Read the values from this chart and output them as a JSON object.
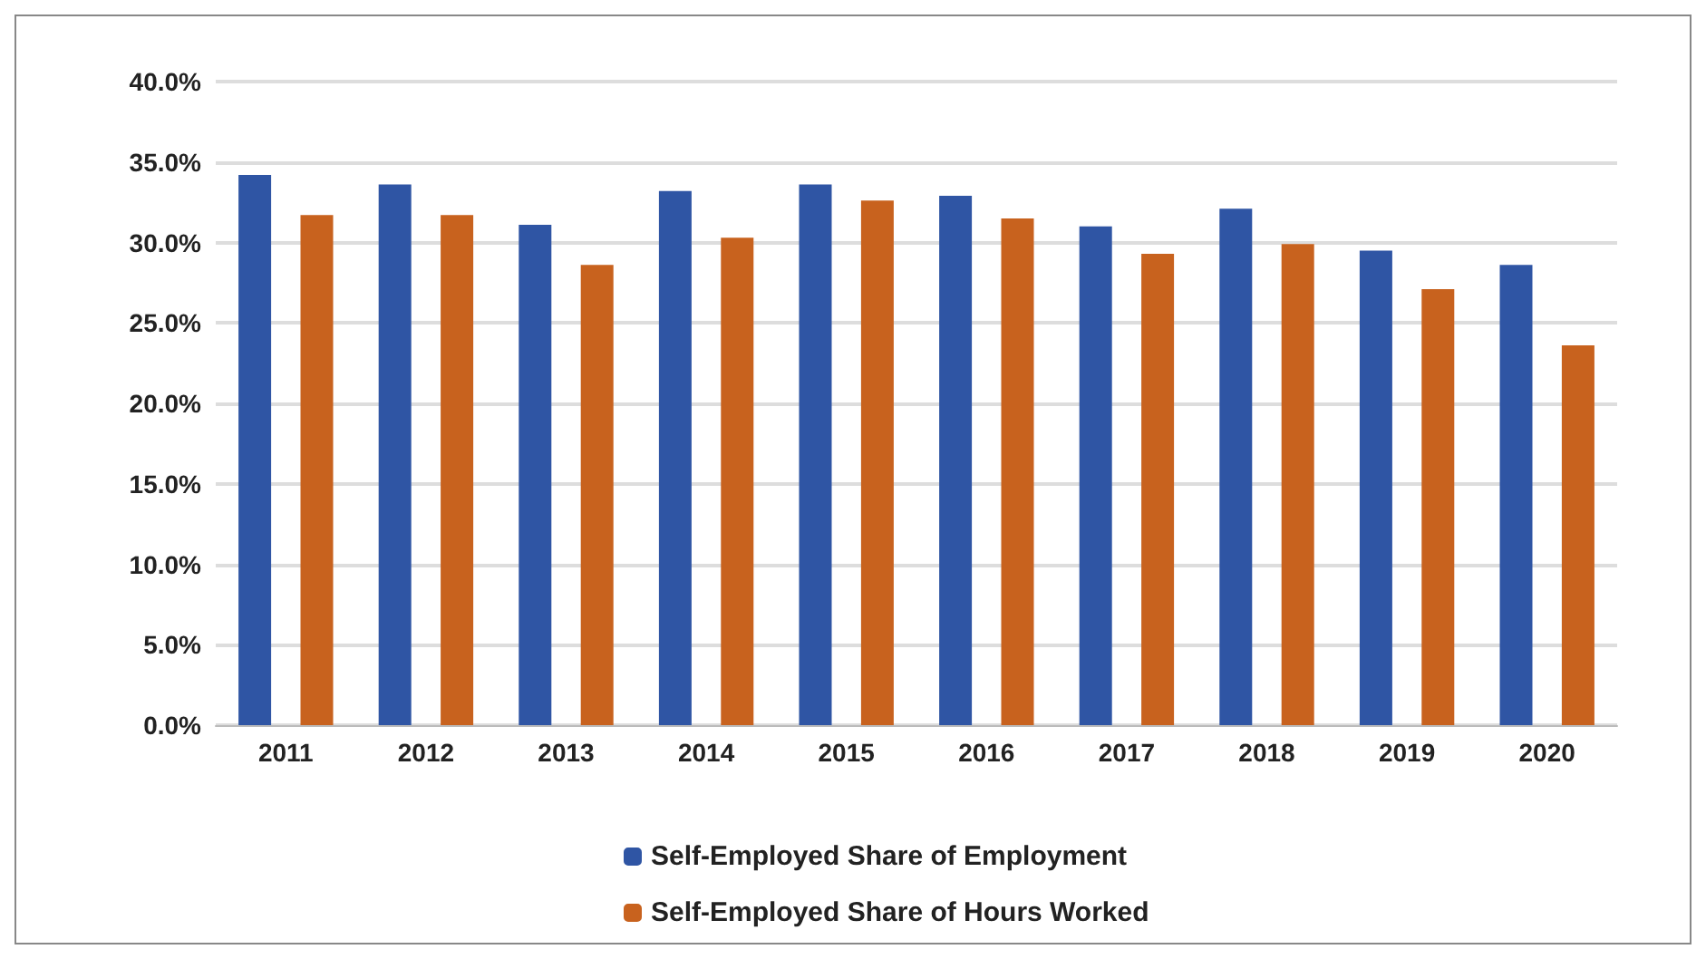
{
  "chart_data": {
    "type": "bar",
    "categories": [
      "2011",
      "2012",
      "2013",
      "2014",
      "2015",
      "2016",
      "2017",
      "2018",
      "2019",
      "2020"
    ],
    "series": [
      {
        "name": "Self-Employed Share of Employment",
        "color": "#2f55a4",
        "values": [
          34.2,
          33.6,
          31.1,
          33.2,
          33.6,
          32.9,
          31.0,
          32.1,
          29.5,
          28.6
        ]
      },
      {
        "name": "Self-Employed Share of Hours Worked",
        "color": "#c8621e",
        "values": [
          31.7,
          31.7,
          28.6,
          30.3,
          32.6,
          31.5,
          29.3,
          29.9,
          27.1,
          23.6
        ]
      }
    ],
    "ylim": [
      0,
      40
    ],
    "yticks": [
      {
        "value": 0,
        "label": "0.0%"
      },
      {
        "value": 5,
        "label": "5.0%"
      },
      {
        "value": 10,
        "label": "10.0%"
      },
      {
        "value": 15,
        "label": "15.0%"
      },
      {
        "value": 20,
        "label": "20.0%"
      },
      {
        "value": 25,
        "label": "25.0%"
      },
      {
        "value": 30,
        "label": "30.0%"
      },
      {
        "value": 35,
        "label": "35.0%"
      },
      {
        "value": 40,
        "label": "40.0%"
      }
    ],
    "grid": "y",
    "legend": "bottom"
  }
}
